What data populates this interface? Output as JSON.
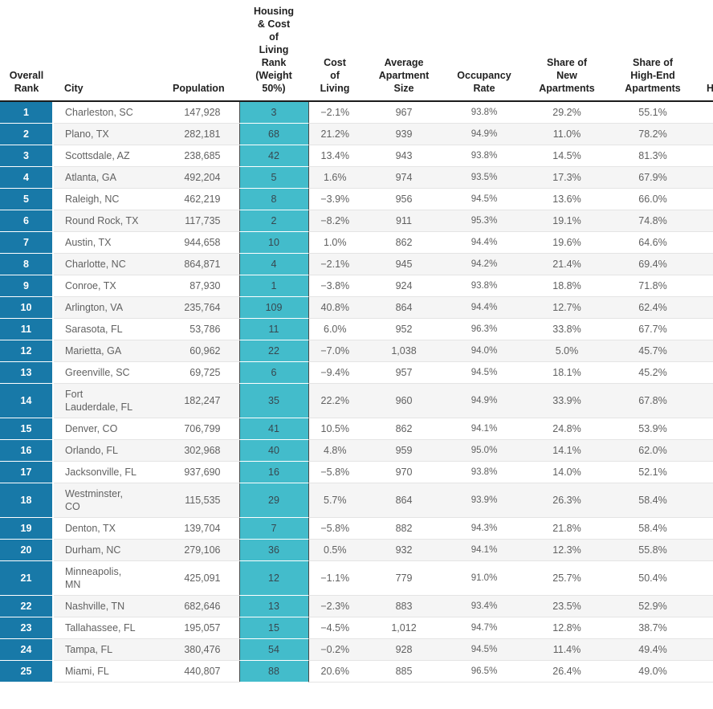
{
  "colors": {
    "rank_column_bg": "#1879A8",
    "housing_rank_column_bg": "#43BCCB",
    "header_text": "#212121",
    "body_text": "#616161",
    "alt_row_bg": "#f5f5f5"
  },
  "columns": [
    {
      "key": "rank",
      "label": "Overall\nRank"
    },
    {
      "key": "city",
      "label": "City"
    },
    {
      "key": "population",
      "label": "Population"
    },
    {
      "key": "housing",
      "label": "Housing\n& Cost\nof\nLiving\nRank\n(Weight\n50%)"
    },
    {
      "key": "cost",
      "label": "Cost\nof\nLiving"
    },
    {
      "key": "avg_size",
      "label": "Average\nApartment\nSize"
    },
    {
      "key": "occupancy",
      "label": "Occupancy\nRate"
    },
    {
      "key": "new_share",
      "label": "Share of\nNew\nApartments"
    },
    {
      "key": "highend_share",
      "label": "Share of\nHigh-End\nApartments"
    },
    {
      "key": "partial",
      "label": "H"
    }
  ],
  "rows": [
    {
      "rank": "1",
      "city": "Charleston, SC",
      "population": "147,928",
      "housing": "3",
      "cost": "−2.1%",
      "avg_size": "967",
      "occupancy": "93.8%",
      "new_share": "29.2%",
      "highend_share": "55.1%"
    },
    {
      "rank": "2",
      "city": "Plano, TX",
      "population": "282,181",
      "housing": "68",
      "cost": "21.2%",
      "avg_size": "939",
      "occupancy": "94.9%",
      "new_share": "11.0%",
      "highend_share": "78.2%"
    },
    {
      "rank": "3",
      "city": "Scottsdale, AZ",
      "population": "238,685",
      "housing": "42",
      "cost": "13.4%",
      "avg_size": "943",
      "occupancy": "93.8%",
      "new_share": "14.5%",
      "highend_share": "81.3%"
    },
    {
      "rank": "4",
      "city": "Atlanta, GA",
      "population": "492,204",
      "housing": "5",
      "cost": "1.6%",
      "avg_size": "974",
      "occupancy": "93.5%",
      "new_share": "17.3%",
      "highend_share": "67.9%"
    },
    {
      "rank": "5",
      "city": "Raleigh, NC",
      "population": "462,219",
      "housing": "8",
      "cost": "−3.9%",
      "avg_size": "956",
      "occupancy": "94.5%",
      "new_share": "13.6%",
      "highend_share": "66.0%"
    },
    {
      "rank": "6",
      "city": "Round Rock, TX",
      "population": "117,735",
      "housing": "2",
      "cost": "−8.2%",
      "avg_size": "911",
      "occupancy": "95.3%",
      "new_share": "19.1%",
      "highend_share": "74.8%"
    },
    {
      "rank": "7",
      "city": "Austin, TX",
      "population": "944,658",
      "housing": "10",
      "cost": "1.0%",
      "avg_size": "862",
      "occupancy": "94.4%",
      "new_share": "19.6%",
      "highend_share": "64.6%"
    },
    {
      "rank": "8",
      "city": "Charlotte, NC",
      "population": "864,871",
      "housing": "4",
      "cost": "−2.1%",
      "avg_size": "945",
      "occupancy": "94.2%",
      "new_share": "21.4%",
      "highend_share": "69.4%"
    },
    {
      "rank": "9",
      "city": "Conroe, TX",
      "population": "87,930",
      "housing": "1",
      "cost": "−3.8%",
      "avg_size": "924",
      "occupancy": "93.8%",
      "new_share": "18.8%",
      "highend_share": "71.8%"
    },
    {
      "rank": "10",
      "city": "Arlington, VA",
      "population": "235,764",
      "housing": "109",
      "cost": "40.8%",
      "avg_size": "864",
      "occupancy": "94.4%",
      "new_share": "12.7%",
      "highend_share": "62.4%"
    },
    {
      "rank": "11",
      "city": "Sarasota, FL",
      "population": "53,786",
      "housing": "11",
      "cost": "6.0%",
      "avg_size": "952",
      "occupancy": "96.3%",
      "new_share": "33.8%",
      "highend_share": "67.7%"
    },
    {
      "rank": "12",
      "city": "Marietta, GA",
      "population": "60,962",
      "housing": "22",
      "cost": "−7.0%",
      "avg_size": "1,038",
      "occupancy": "94.0%",
      "new_share": "5.0%",
      "highend_share": "45.7%"
    },
    {
      "rank": "13",
      "city": "Greenville, SC",
      "population": "69,725",
      "housing": "6",
      "cost": "−9.4%",
      "avg_size": "957",
      "occupancy": "94.5%",
      "new_share": "18.1%",
      "highend_share": "45.2%"
    },
    {
      "rank": "14",
      "city": "Fort\nLauderdale, FL",
      "population": "182,247",
      "housing": "35",
      "cost": "22.2%",
      "avg_size": "960",
      "occupancy": "94.9%",
      "new_share": "33.9%",
      "highend_share": "67.8%"
    },
    {
      "rank": "15",
      "city": "Denver, CO",
      "population": "706,799",
      "housing": "41",
      "cost": "10.5%",
      "avg_size": "862",
      "occupancy": "94.1%",
      "new_share": "24.8%",
      "highend_share": "53.9%"
    },
    {
      "rank": "16",
      "city": "Orlando, FL",
      "population": "302,968",
      "housing": "40",
      "cost": "4.8%",
      "avg_size": "959",
      "occupancy": "95.0%",
      "new_share": "14.1%",
      "highend_share": "62.0%"
    },
    {
      "rank": "17",
      "city": "Jacksonville, FL",
      "population": "937,690",
      "housing": "16",
      "cost": "−5.8%",
      "avg_size": "970",
      "occupancy": "93.8%",
      "new_share": "14.0%",
      "highend_share": "52.1%"
    },
    {
      "rank": "18",
      "city": "Westminster,\nCO",
      "population": "115,535",
      "housing": "29",
      "cost": "5.7%",
      "avg_size": "864",
      "occupancy": "93.9%",
      "new_share": "26.3%",
      "highend_share": "58.4%"
    },
    {
      "rank": "19",
      "city": "Denton, TX",
      "population": "139,704",
      "housing": "7",
      "cost": "−5.8%",
      "avg_size": "882",
      "occupancy": "94.3%",
      "new_share": "21.8%",
      "highend_share": "58.4%"
    },
    {
      "rank": "20",
      "city": "Durham, NC",
      "population": "279,106",
      "housing": "36",
      "cost": "0.5%",
      "avg_size": "932",
      "occupancy": "94.1%",
      "new_share": "12.3%",
      "highend_share": "55.8%"
    },
    {
      "rank": "21",
      "city": "Minneapolis,\nMN",
      "population": "425,091",
      "housing": "12",
      "cost": "−1.1%",
      "avg_size": "779",
      "occupancy": "91.0%",
      "new_share": "25.7%",
      "highend_share": "50.4%"
    },
    {
      "rank": "22",
      "city": "Nashville, TN",
      "population": "682,646",
      "housing": "13",
      "cost": "−2.3%",
      "avg_size": "883",
      "occupancy": "93.4%",
      "new_share": "23.5%",
      "highend_share": "52.9%"
    },
    {
      "rank": "23",
      "city": "Tallahassee, FL",
      "population": "195,057",
      "housing": "15",
      "cost": "−4.5%",
      "avg_size": "1,012",
      "occupancy": "94.7%",
      "new_share": "12.8%",
      "highend_share": "38.7%"
    },
    {
      "rank": "24",
      "city": "Tampa, FL",
      "population": "380,476",
      "housing": "54",
      "cost": "−0.2%",
      "avg_size": "928",
      "occupancy": "94.5%",
      "new_share": "11.4%",
      "highend_share": "49.4%"
    },
    {
      "rank": "25",
      "city": "Miami, FL",
      "population": "440,807",
      "housing": "88",
      "cost": "20.6%",
      "avg_size": "885",
      "occupancy": "96.5%",
      "new_share": "26.4%",
      "highend_share": "49.0%"
    }
  ]
}
